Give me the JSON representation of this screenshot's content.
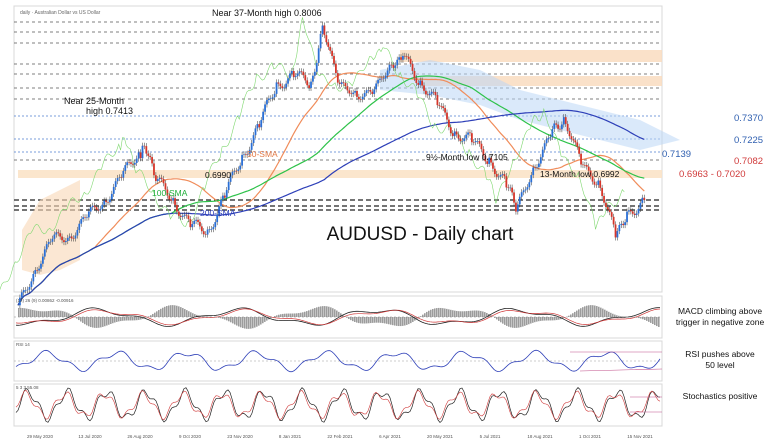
{
  "header": {
    "instrument_label": "daily · Australian Dollar vs US Dollar"
  },
  "chart_data": [
    {
      "type": "candlestick",
      "title": "AUDUSD - Daily chart",
      "instrument": "AUDUSD",
      "timeframe": "Daily",
      "x_tick_labels": [
        "29 May 2020",
        "13 Jul 2020",
        "26 Aug 2020",
        "9 Oct 2020",
        "23 Nov 2020",
        "8 Jan 2021",
        "22 Feb 2021",
        "6 Apr 2021",
        "20 May 2021",
        "5 Jul 2021",
        "18 Aug 2021",
        "1 Oct 2021",
        "15 Nov 2021"
      ],
      "ylim": [
        0.67,
        0.81
      ],
      "price_series": [
        {
          "t": 0,
          "close": 0.662
        },
        {
          "t": 3,
          "close": 0.682
        },
        {
          "t": 6,
          "close": 0.695
        },
        {
          "t": 9,
          "close": 0.698
        },
        {
          "t": 12,
          "close": 0.706
        },
        {
          "t": 15,
          "close": 0.715
        },
        {
          "t": 18,
          "close": 0.726
        },
        {
          "t": 21,
          "close": 0.738
        },
        {
          "t": 22,
          "close": 0.7413
        },
        {
          "t": 24,
          "close": 0.725
        },
        {
          "t": 27,
          "close": 0.715
        },
        {
          "t": 30,
          "close": 0.703
        },
        {
          "t": 33,
          "close": 0.699
        },
        {
          "t": 36,
          "close": 0.718
        },
        {
          "t": 39,
          "close": 0.735
        },
        {
          "t": 42,
          "close": 0.753
        },
        {
          "t": 45,
          "close": 0.77
        },
        {
          "t": 48,
          "close": 0.778
        },
        {
          "t": 51,
          "close": 0.77
        },
        {
          "t": 53,
          "close": 0.8006
        },
        {
          "t": 56,
          "close": 0.772
        },
        {
          "t": 59,
          "close": 0.765
        },
        {
          "t": 62,
          "close": 0.77
        },
        {
          "t": 65,
          "close": 0.78
        },
        {
          "t": 67,
          "close": 0.786
        },
        {
          "t": 70,
          "close": 0.773
        },
        {
          "t": 73,
          "close": 0.762
        },
        {
          "t": 76,
          "close": 0.748
        },
        {
          "t": 79,
          "close": 0.744
        },
        {
          "t": 82,
          "close": 0.735
        },
        {
          "t": 85,
          "close": 0.722
        },
        {
          "t": 87,
          "close": 0.7105
        },
        {
          "t": 90,
          "close": 0.733
        },
        {
          "t": 93,
          "close": 0.748
        },
        {
          "t": 95,
          "close": 0.753
        },
        {
          "t": 98,
          "close": 0.735
        },
        {
          "t": 101,
          "close": 0.722
        },
        {
          "t": 104,
          "close": 0.6992
        },
        {
          "t": 106,
          "close": 0.708
        },
        {
          "t": 109,
          "close": 0.715
        }
      ],
      "moving_averages": [
        {
          "name": "50-SMA",
          "color": "#f08c5a"
        },
        {
          "name": "100-SMA",
          "color": "#2ec24a"
        },
        {
          "name": "200-SMA",
          "color": "#2d3fb8"
        }
      ],
      "horizontal_levels": [
        0.737,
        0.7225,
        0.7139,
        0.7082,
        0.6963,
        0.702
      ],
      "right_axis_labels": [
        {
          "text": "0.7370",
          "color": "#2f5fb0"
        },
        {
          "text": "0.7225",
          "color": "#2f5fb0"
        },
        {
          "text": "0.7139",
          "color": "#2f5fb0"
        },
        {
          "text": "0.7082",
          "color": "#d03a3a"
        },
        {
          "text": "0.6963 - 0.7020",
          "color": "#d03a3a"
        }
      ],
      "annotations": [
        {
          "text": "Near 37-Month high 0.8006"
        },
        {
          "text": "Near 25-Month"
        },
        {
          "text": "high 0.7413"
        },
        {
          "text": "50-SMA"
        },
        {
          "text": "100-SMA"
        },
        {
          "text": "200-SMA"
        },
        {
          "text": "0.6990"
        },
        {
          "text": "9½-Month low 0.7105"
        },
        {
          "text": "13-Month low 0.6992"
        }
      ]
    },
    {
      "type": "macd",
      "header": "(12) 26 (9) 0.00862 -0.00916",
      "annotation_lines": [
        "MACD climbing above",
        "trigger in negative zone"
      ]
    },
    {
      "type": "rsi",
      "header": "RSI 14",
      "annotation_lines": [
        "RSI pushes above",
        "50 level"
      ]
    },
    {
      "type": "stochastics",
      "header": "5 3 3  55.08",
      "annotation_lines": [
        "Stochastics positive"
      ]
    }
  ]
}
